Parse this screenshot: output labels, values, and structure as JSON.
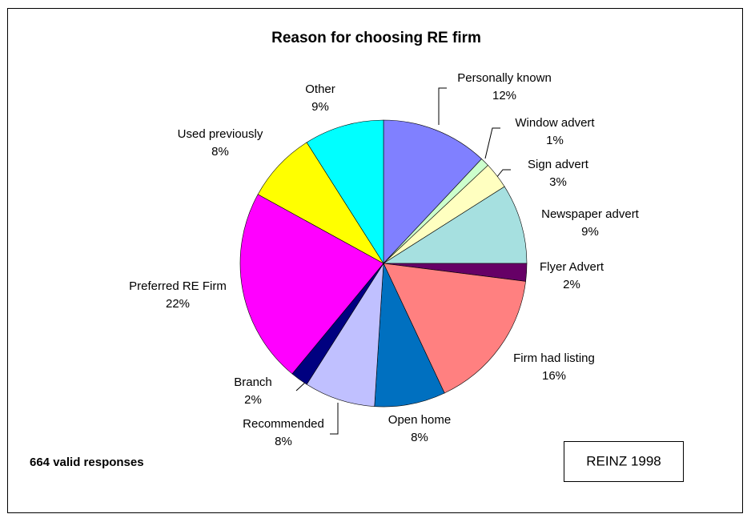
{
  "chart_data": {
    "type": "pie",
    "title": "Reason for choosing RE firm",
    "categories": [
      "Personally known",
      "Window advert",
      "Sign advert",
      "Newspaper advert",
      "Flyer Advert",
      "Firm had listing",
      "Open home",
      "Recommended",
      "Branch",
      "Preferred RE Firm",
      "Used previously",
      "Other"
    ],
    "values": [
      12,
      1,
      3,
      9,
      2,
      16,
      8,
      8,
      2,
      22,
      8,
      9
    ],
    "value_labels": [
      "12%",
      "1%",
      "3%",
      "9%",
      "2%",
      "16%",
      "8%",
      "8%",
      "2%",
      "22%",
      "8%",
      "9%"
    ],
    "colors": [
      "#8080ff",
      "#ccffcc",
      "#ffffc0",
      "#a6e0e0",
      "#660066",
      "#ff8080",
      "#0070c0",
      "#c0c0ff",
      "#000080",
      "#ff00ff",
      "#ffff00",
      "#00ffff"
    ],
    "annotations": [
      "664 valid responses",
      "REINZ 1998"
    ]
  }
}
